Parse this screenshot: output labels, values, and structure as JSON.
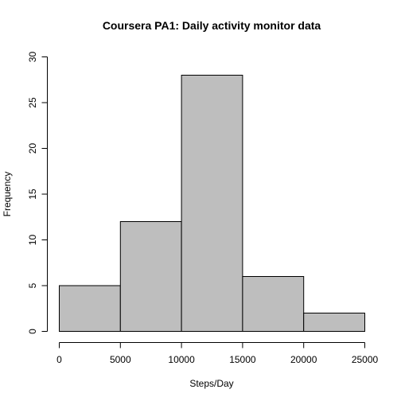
{
  "chart_data": {
    "type": "bar",
    "title": "Coursera PA1: Daily activity monitor data",
    "xlabel": "Steps/Day",
    "ylabel": "Frequency",
    "bins": [
      {
        "from": 0,
        "to": 5000,
        "value": 5
      },
      {
        "from": 5000,
        "to": 10000,
        "value": 12
      },
      {
        "from": 10000,
        "to": 15000,
        "value": 28
      },
      {
        "from": 15000,
        "to": 20000,
        "value": 6
      },
      {
        "from": 20000,
        "to": 25000,
        "value": 2
      }
    ],
    "xlim": [
      0,
      25000
    ],
    "ylim": [
      0,
      30
    ],
    "x_ticks": [
      0,
      5000,
      10000,
      15000,
      20000,
      25000
    ],
    "y_ticks": [
      0,
      5,
      10,
      15,
      20,
      25,
      30
    ],
    "bar_color": "#bebebe",
    "edge_color": "#000000",
    "grid": false,
    "legend": "none"
  }
}
